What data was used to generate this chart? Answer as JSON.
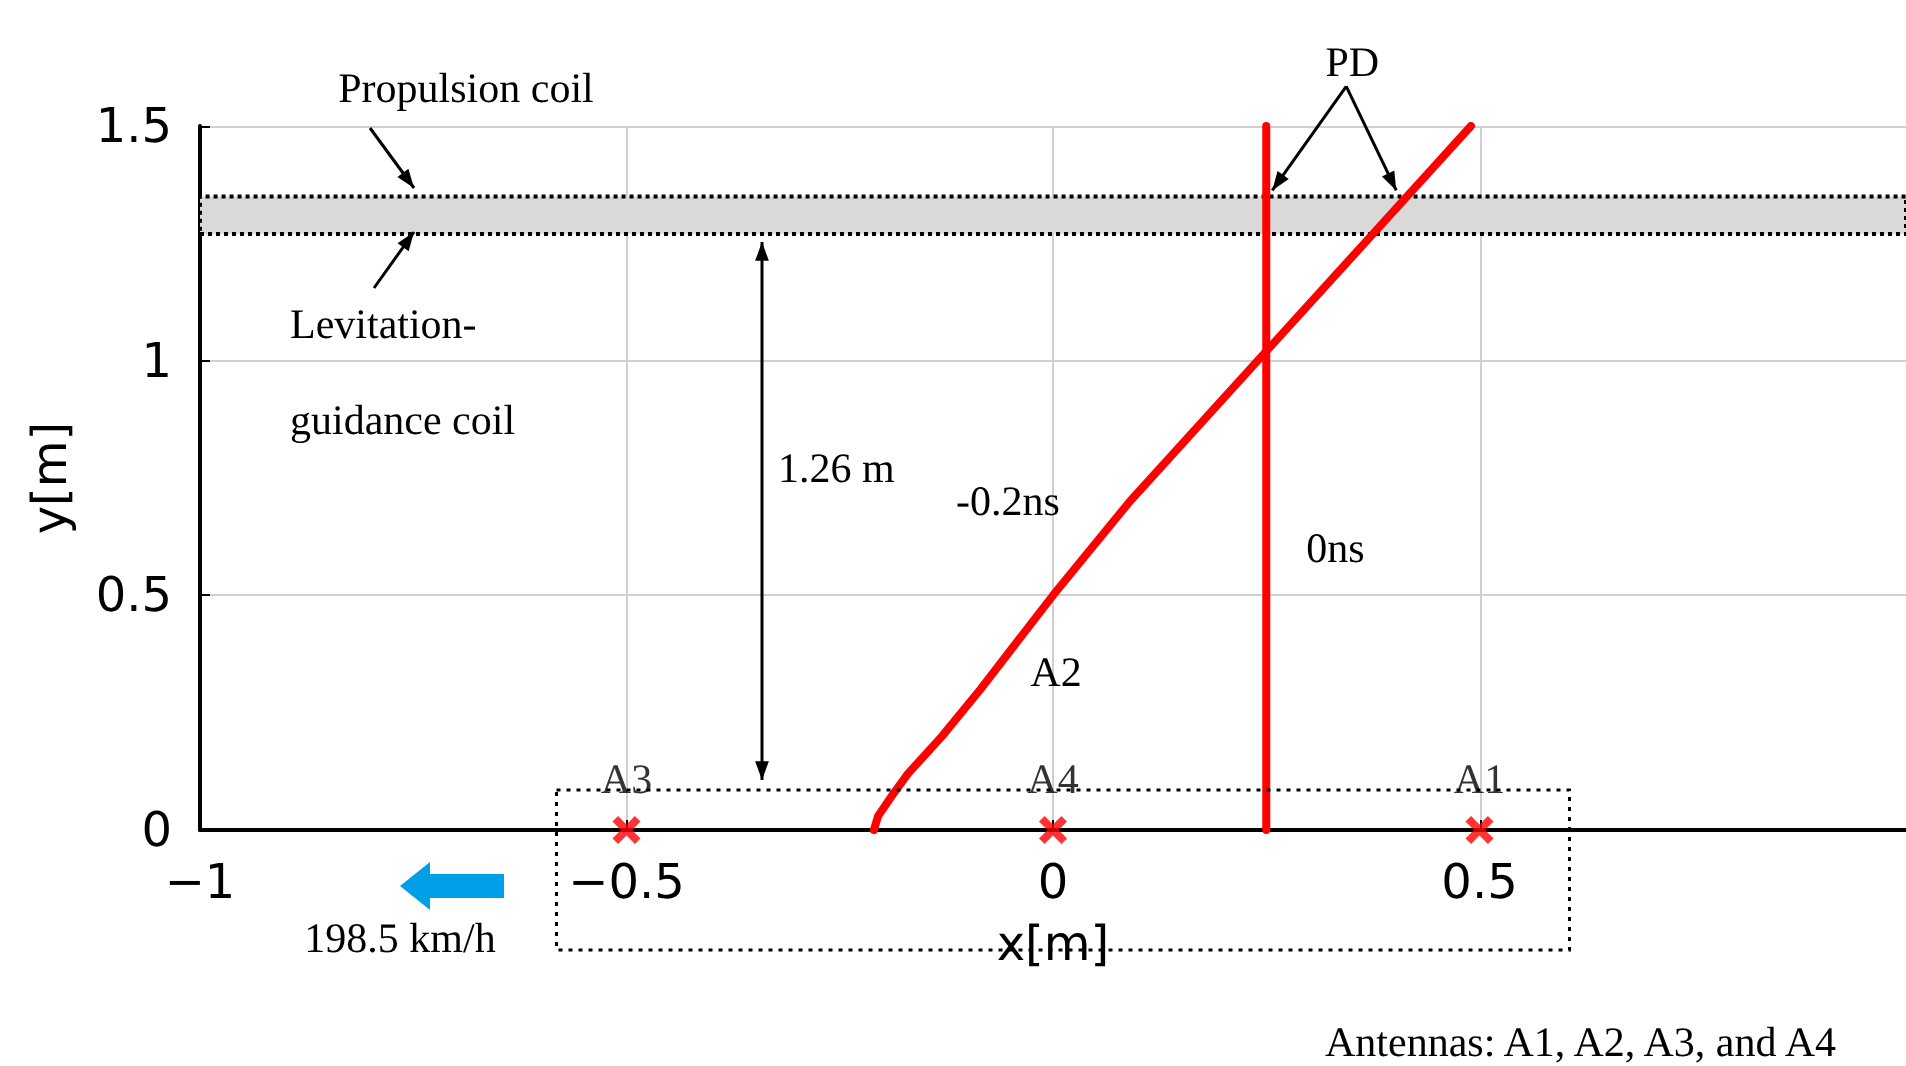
{
  "chart_data": {
    "type": "line",
    "xlabel": "x[m]",
    "ylabel": "y[m]",
    "xlim": [
      -1,
      1
    ],
    "xticks": [
      -1,
      -0.5,
      0,
      0.5
    ],
    "ylim": [
      0,
      1.5
    ],
    "yticks": [
      0,
      0.5,
      1,
      1.5
    ],
    "grid": true,
    "series": [
      {
        "name": "-0.2ns",
        "color": "#ff0000",
        "x": [
          -0.21,
          -0.205,
          -0.19,
          -0.17,
          -0.13,
          -0.085,
          0,
          0.09,
          0.24,
          0.365,
          0.49
        ],
        "values": [
          0,
          0.03,
          0.07,
          0.12,
          0.2,
          0.3,
          0.5,
          0.7,
          1.0,
          1.25,
          1.5
        ]
      },
      {
        "name": "0ns",
        "color": "#ff0000",
        "x": [
          0.25,
          0.25,
          0.25
        ],
        "values": [
          0,
          0.6,
          1.5
        ]
      },
      {
        "type": "scatter",
        "color": "#ff0000",
        "marker": "cross",
        "x": [
          0.5,
          -0.5,
          0
        ],
        "values": [
          0,
          0,
          0
        ],
        "value_labels": [
          "A1",
          "A3",
          "A4"
        ]
      }
    ],
    "bands": [
      {
        "axis": "y",
        "from": 1.27,
        "to": 1.35,
        "color": "#d9d9d9"
      }
    ],
    "annotations": [
      "Propulsion coil",
      "Levitation-\nguidance coil",
      {
        "text": "PD",
        "x": 0.25,
        "y": 1.35
      },
      "1.26 m",
      "A2",
      "198.5 km/h",
      "Antennas: A1, A2, A3, and A4"
    ]
  }
}
